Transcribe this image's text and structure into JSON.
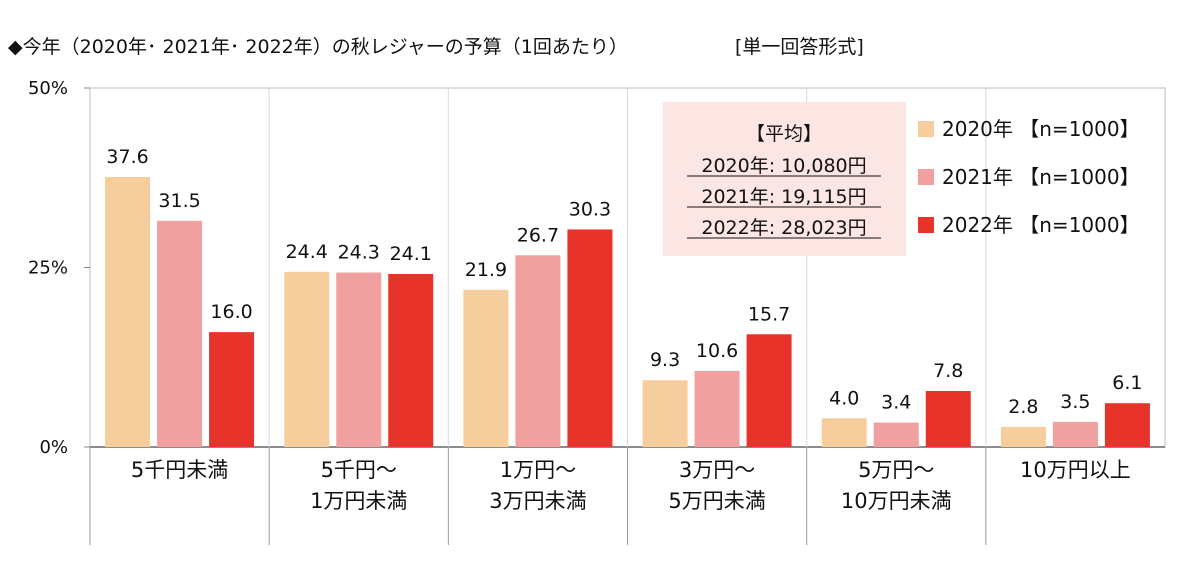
{
  "chart_data": {
    "type": "bar",
    "title": "◆今年（2020年･ 2021年･ 2022年）の秋レジャーの予算（1回あたり）",
    "note": "[単一回答形式]",
    "categories": [
      [
        "5千円未満"
      ],
      [
        "5千円～",
        "1万円未満"
      ],
      [
        "1万円～",
        "3万円未満"
      ],
      [
        "3万円～",
        "5万円未満"
      ],
      [
        "5万円～",
        "10万円未満"
      ],
      [
        "10万円以上"
      ]
    ],
    "series": [
      {
        "name": "2020年 【n=1000】",
        "color": "#f6cd9c",
        "values": [
          37.6,
          24.4,
          21.9,
          9.3,
          4.0,
          2.8
        ]
      },
      {
        "name": "2021年 【n=1000】",
        "color": "#f0a09e",
        "values": [
          31.5,
          24.3,
          26.7,
          10.6,
          3.4,
          3.5
        ]
      },
      {
        "name": "2022年 【n=1000】",
        "color": "#e8332a",
        "values": [
          16.0,
          24.1,
          30.3,
          15.7,
          7.8,
          6.1
        ]
      }
    ],
    "value_labels": [
      [
        "37.6",
        "24.4",
        "21.9",
        "9.3",
        "4.0",
        "2.8"
      ],
      [
        "31.5",
        "24.3",
        "26.7",
        "10.6",
        "3.4",
        "3.5"
      ],
      [
        "16.0",
        "24.1",
        "30.3",
        "15.7",
        "7.8",
        "6.1"
      ]
    ],
    "yaxis": {
      "ticks": [
        0,
        25,
        50
      ],
      "tick_labels": [
        "0%",
        "25%",
        "50%"
      ],
      "ylim": [
        0,
        50
      ]
    },
    "average_box": {
      "heading": "【平均】",
      "lines": [
        "2020年: 10,080円",
        "2021年: 19,115円",
        "2022年: 28,023円"
      ],
      "background": "#fbe6e4"
    },
    "legend_position": "top-right",
    "grid": false
  }
}
